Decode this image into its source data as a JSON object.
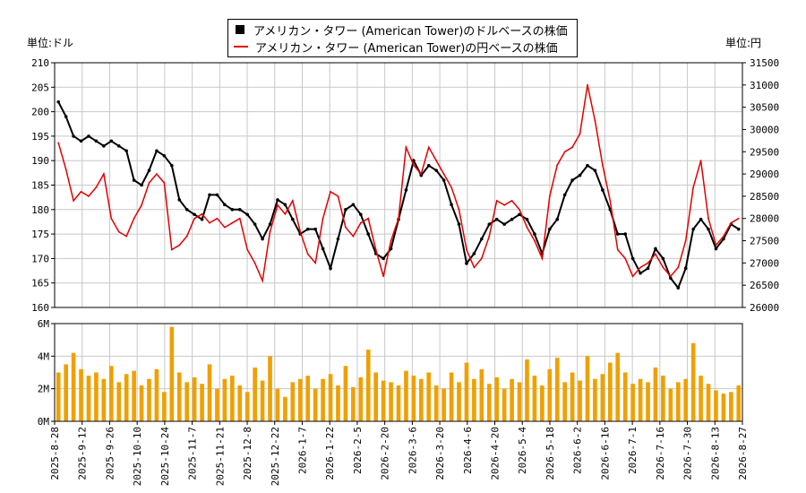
{
  "legend": {
    "usd_label": "アメリカン・タワー (American Tower)のドルベースの株価",
    "jpy_label": "アメリカン・タワー (American Tower)の円ベースの株価"
  },
  "units": {
    "left": "単位:ドル",
    "right": "単位:円"
  },
  "colors": {
    "usd": "#000000",
    "jpy": "#e00000",
    "volume": "#f0a000",
    "grid": "#c8c8c8"
  },
  "chart_data": {
    "type": "line",
    "usd_axis": {
      "ylim": [
        160,
        210
      ],
      "ticks": [
        160,
        165,
        170,
        175,
        180,
        185,
        190,
        195,
        200,
        205,
        210
      ]
    },
    "jpy_axis": {
      "ylim": [
        26000,
        31500
      ],
      "ticks": [
        26000,
        26500,
        27000,
        27500,
        28000,
        28500,
        29000,
        29500,
        30000,
        30500,
        31000,
        31500
      ]
    },
    "volume_axis": {
      "ylim": [
        0,
        6
      ],
      "ticks": [
        0,
        2,
        4,
        6
      ],
      "tick_labels": [
        "0M",
        "2M",
        "4M",
        "6M"
      ]
    },
    "x_labels": [
      "2025-8-28",
      "2025-9-12",
      "2025-9-26",
      "2025-10-10",
      "2025-10-24",
      "2025-11-7",
      "2025-11-21",
      "2025-12-8",
      "2025-12-22",
      "2026-1-7",
      "2026-1-22",
      "2026-2-5",
      "2026-2-20",
      "2026-3-6",
      "2026-3-20",
      "2026-4-6",
      "2026-4-20",
      "2026-5-4",
      "2026-5-18",
      "2026-6-2",
      "2026-6-16",
      "2026-7-1",
      "2026-7-16",
      "2026-7-30",
      "2026-8-13",
      "2026-8-27"
    ],
    "series": [
      {
        "name": "アメリカン・タワー (American Tower)のドルベースの株価",
        "values": [
          202,
          199,
          195,
          194,
          195,
          194,
          193,
          194,
          193,
          192,
          186,
          185,
          188,
          192,
          191,
          189,
          182,
          180,
          179,
          178,
          183,
          183,
          181,
          180,
          180,
          179,
          177,
          174,
          177,
          182,
          181,
          178,
          175,
          176,
          176,
          172,
          168,
          174,
          180,
          181,
          179,
          175,
          171,
          170,
          172,
          178,
          184,
          190,
          187,
          189,
          188,
          186,
          181,
          177,
          169,
          171,
          174,
          177,
          178,
          177,
          178,
          179,
          178,
          175,
          171,
          176,
          178,
          183,
          186,
          187,
          189,
          188,
          184,
          180,
          175,
          175,
          170,
          167,
          168,
          172,
          170,
          166,
          164,
          168,
          176,
          178,
          176,
          172,
          174,
          177,
          176
        ]
      },
      {
        "name": "アメリカン・タワー (American Tower)の円ベースの株価",
        "values": [
          29700,
          29100,
          28400,
          28600,
          28500,
          28700,
          29000,
          28000,
          27700,
          27600,
          28000,
          28300,
          28800,
          29000,
          28800,
          27300,
          27400,
          27600,
          28000,
          28100,
          27900,
          28000,
          27800,
          27900,
          28000,
          27300,
          27000,
          26600,
          27700,
          28300,
          28100,
          28400,
          27700,
          27200,
          27000,
          28000,
          28600,
          28500,
          27800,
          27600,
          27900,
          28000,
          27300,
          26700,
          27500,
          28000,
          29600,
          29200,
          29000,
          29600,
          29300,
          29000,
          28700,
          28200,
          27300,
          26900,
          27100,
          27600,
          28400,
          28300,
          28400,
          28200,
          27800,
          27500,
          27100,
          28500,
          29200,
          29500,
          29600,
          29900,
          31000,
          30200,
          29200,
          28400,
          27300,
          27100,
          26700,
          26900,
          27000,
          27200,
          26900,
          26700,
          26900,
          27500,
          28700,
          29300,
          28000,
          27400,
          27600,
          27900,
          28000
        ]
      },
      {
        "name": "出来高",
        "values": [
          3.0,
          3.5,
          4.2,
          3.2,
          2.8,
          3.0,
          2.6,
          3.4,
          2.4,
          2.9,
          3.1,
          2.2,
          2.6,
          3.2,
          1.8,
          5.8,
          3.0,
          2.4,
          2.7,
          2.3,
          3.5,
          2.0,
          2.6,
          2.8,
          2.2,
          1.8,
          3.3,
          2.5,
          4.0,
          2.0,
          1.5,
          2.4,
          2.6,
          2.8,
          2.0,
          2.6,
          2.9,
          2.2,
          3.4,
          2.1,
          2.7,
          4.4,
          3.0,
          2.5,
          2.4,
          2.2,
          3.1,
          2.8,
          2.6,
          3.0,
          2.2,
          2.0,
          3.0,
          2.4,
          3.6,
          2.6,
          3.2,
          2.3,
          2.7,
          2.0,
          2.6,
          2.4,
          3.8,
          2.8,
          2.2,
          3.2,
          3.9,
          2.4,
          3.0,
          2.5,
          4.0,
          2.6,
          2.9,
          3.6,
          4.2,
          3.0,
          2.3,
          2.6,
          2.4,
          3.3,
          2.8,
          2.0,
          2.4,
          2.6,
          4.8,
          2.8,
          2.3,
          1.9,
          1.7,
          1.8,
          2.2
        ]
      }
    ]
  }
}
